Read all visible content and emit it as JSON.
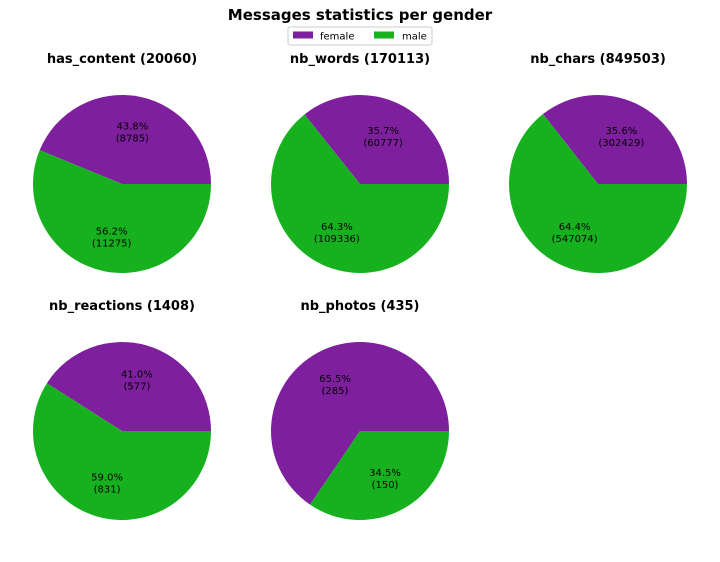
{
  "figure": {
    "title": "Messages statistics per gender"
  },
  "legend": {
    "placement": "top-center",
    "entries": [
      {
        "name": "female",
        "color": "#7e1f9e"
      },
      {
        "name": "male",
        "color": "#17b11f"
      }
    ]
  },
  "chart_data": [
    {
      "type": "pie",
      "title": "has_content (20060)",
      "slices": [
        {
          "name": "female",
          "value": 8785,
          "pct_label": "43.8%",
          "count_label": "(8785)",
          "color": "#7e1f9e"
        },
        {
          "name": "male",
          "value": 11275,
          "pct_label": "56.2%",
          "count_label": "(11275)",
          "color": "#17b11f"
        }
      ]
    },
    {
      "type": "pie",
      "title": "nb_words (170113)",
      "slices": [
        {
          "name": "female",
          "value": 60777,
          "pct_label": "35.7%",
          "count_label": "(60777)",
          "color": "#7e1f9e"
        },
        {
          "name": "male",
          "value": 109336,
          "pct_label": "64.3%",
          "count_label": "(109336)",
          "color": "#17b11f"
        }
      ]
    },
    {
      "type": "pie",
      "title": "nb_chars (849503)",
      "slices": [
        {
          "name": "female",
          "value": 302429,
          "pct_label": "35.6%",
          "count_label": "(302429)",
          "color": "#7e1f9e"
        },
        {
          "name": "male",
          "value": 547074,
          "pct_label": "64.4%",
          "count_label": "(547074)",
          "color": "#17b11f"
        }
      ]
    },
    {
      "type": "pie",
      "title": "nb_reactions (1408)",
      "slices": [
        {
          "name": "female",
          "value": 577,
          "pct_label": "41.0%",
          "count_label": "(577)",
          "color": "#7e1f9e"
        },
        {
          "name": "male",
          "value": 831,
          "pct_label": "59.0%",
          "count_label": "(831)",
          "color": "#17b11f"
        }
      ]
    },
    {
      "type": "pie",
      "title": "nb_photos (435)",
      "slices": [
        {
          "name": "female",
          "value": 285,
          "pct_label": "65.5%",
          "count_label": "(285)",
          "color": "#7e1f9e"
        },
        {
          "name": "male",
          "value": 150,
          "pct_label": "34.5%",
          "count_label": "(150)",
          "color": "#17b11f"
        }
      ]
    }
  ]
}
